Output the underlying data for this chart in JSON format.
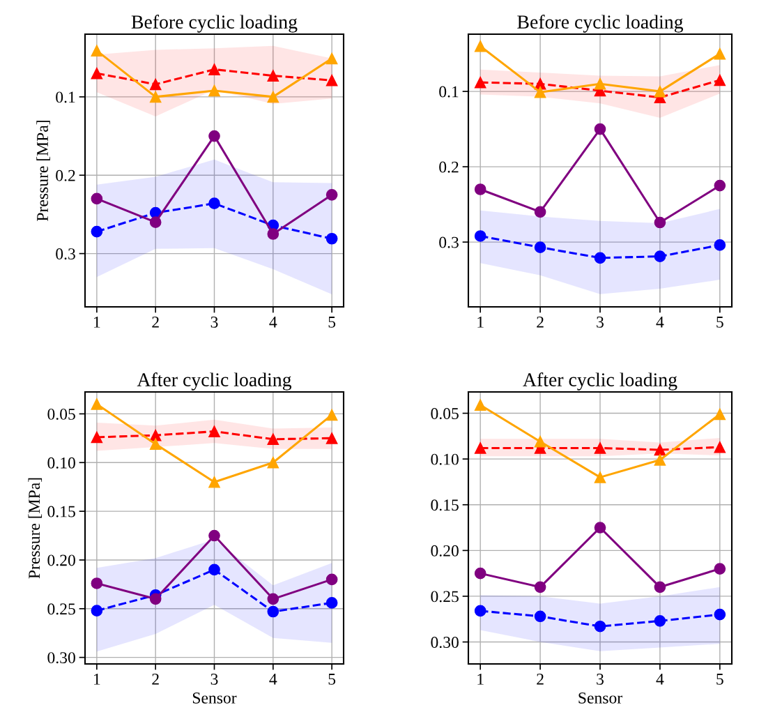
{
  "chart_data": [
    {
      "type": "line",
      "title": "Before cyclic loading",
      "ylabel": "Pressure [MPa]",
      "x": [
        1,
        2,
        3,
        4,
        5
      ],
      "xlim": [
        0.8,
        5.2
      ],
      "xticks": [
        1,
        2,
        3,
        4,
        5
      ],
      "ylim": [
        0.368,
        0.02
      ],
      "yticks": [
        0.1,
        0.2,
        0.3
      ],
      "grid": true,
      "series": [
        {
          "color": "#ff0000",
          "marker": "triangle",
          "line_style": "dashed",
          "values": [
            0.07,
            0.084,
            0.065,
            0.073,
            0.079
          ],
          "lower": [
            0.046,
            0.04,
            0.038,
            0.035,
            0.051
          ],
          "upper": [
            0.094,
            0.125,
            0.091,
            0.109,
            0.102
          ]
        },
        {
          "color": "#ffa500",
          "marker": "triangle",
          "line_style": "solid",
          "values": [
            0.041,
            0.1,
            0.092,
            0.1,
            0.051
          ]
        },
        {
          "color": "#0000ff",
          "marker": "circle",
          "line_style": "dashed",
          "values": [
            0.272,
            0.248,
            0.236,
            0.264,
            0.281
          ],
          "lower": [
            0.212,
            0.202,
            0.18,
            0.209,
            0.21
          ],
          "upper": [
            0.33,
            0.294,
            0.293,
            0.32,
            0.352
          ]
        },
        {
          "color": "#800080",
          "marker": "circle",
          "line_style": "solid",
          "values": [
            0.23,
            0.26,
            0.15,
            0.275,
            0.225
          ]
        }
      ]
    },
    {
      "type": "line",
      "title": "Before cyclic loading",
      "x": [
        1,
        2,
        3,
        4,
        5
      ],
      "xlim": [
        0.8,
        5.2
      ],
      "xticks": [
        1,
        2,
        3,
        4,
        5
      ],
      "ylim": [
        0.386,
        0.024
      ],
      "yticks": [
        0.1,
        0.2,
        0.3
      ],
      "grid": true,
      "series": [
        {
          "color": "#ff0000",
          "marker": "triangle",
          "line_style": "dashed",
          "values": [
            0.088,
            0.09,
            0.099,
            0.108,
            0.085
          ],
          "lower": [
            0.071,
            0.075,
            0.079,
            0.08,
            0.065
          ],
          "upper": [
            0.104,
            0.107,
            0.116,
            0.135,
            0.103
          ]
        },
        {
          "color": "#ffa500",
          "marker": "triangle",
          "line_style": "solid",
          "values": [
            0.04,
            0.101,
            0.09,
            0.1,
            0.05
          ]
        },
        {
          "color": "#0000ff",
          "marker": "circle",
          "line_style": "dashed",
          "values": [
            0.292,
            0.307,
            0.321,
            0.319,
            0.304
          ],
          "lower": [
            0.258,
            0.266,
            0.272,
            0.275,
            0.256
          ],
          "upper": [
            0.328,
            0.344,
            0.369,
            0.362,
            0.35
          ]
        },
        {
          "color": "#800080",
          "marker": "circle",
          "line_style": "solid",
          "values": [
            0.23,
            0.26,
            0.15,
            0.274,
            0.225
          ]
        }
      ]
    },
    {
      "type": "line",
      "title": "After cyclic loading",
      "xlabel": "Sensor",
      "ylabel": "Pressure [MPa]",
      "x": [
        1,
        2,
        3,
        4,
        5
      ],
      "xlim": [
        0.8,
        5.2
      ],
      "xticks": [
        1,
        2,
        3,
        4,
        5
      ],
      "ylim": [
        0.3067,
        0.0275
      ],
      "yticks": [
        {
          "value": 0.05,
          "label": "0.05"
        },
        {
          "value": 0.1,
          "label": "0.10"
        },
        {
          "value": 0.15,
          "label": "0.15"
        },
        {
          "value": 0.2,
          "label": "0.20"
        },
        {
          "value": 0.25,
          "label": "0.25"
        },
        {
          "value": 0.3,
          "label": "0.30"
        }
      ],
      "grid": true,
      "series": [
        {
          "color": "#ff0000",
          "marker": "triangle",
          "line_style": "dashed",
          "values": [
            0.074,
            0.072,
            0.068,
            0.076,
            0.075
          ],
          "lower": [
            0.059,
            0.062,
            0.056,
            0.065,
            0.064
          ],
          "upper": [
            0.088,
            0.084,
            0.08,
            0.086,
            0.086
          ]
        },
        {
          "color": "#ffa500",
          "marker": "triangle",
          "line_style": "solid",
          "values": [
            0.04,
            0.081,
            0.12,
            0.1,
            0.051
          ]
        },
        {
          "color": "#0000ff",
          "marker": "circle",
          "line_style": "dashed",
          "values": [
            0.252,
            0.236,
            0.21,
            0.253,
            0.244
          ],
          "lower": [
            0.208,
            0.198,
            0.179,
            0.226,
            0.203
          ],
          "upper": [
            0.294,
            0.276,
            0.246,
            0.28,
            0.285
          ]
        },
        {
          "color": "#800080",
          "marker": "circle",
          "line_style": "solid",
          "values": [
            0.224,
            0.24,
            0.175,
            0.24,
            0.22
          ]
        }
      ]
    },
    {
      "type": "line",
      "title": "After cyclic loading",
      "xlabel": "Sensor",
      "x": [
        1,
        2,
        3,
        4,
        5
      ],
      "xlim": [
        0.8,
        5.2
      ],
      "xticks": [
        1,
        2,
        3,
        4,
        5
      ],
      "ylim": [
        0.324,
        0.0267
      ],
      "yticks": [
        {
          "value": 0.05,
          "label": "0.05"
        },
        {
          "value": 0.1,
          "label": "0.10"
        },
        {
          "value": 0.15,
          "label": "0.15"
        },
        {
          "value": 0.2,
          "label": "0.20"
        },
        {
          "value": 0.25,
          "label": "0.25"
        },
        {
          "value": 0.3,
          "label": "0.30"
        }
      ],
      "grid": true,
      "series": [
        {
          "color": "#ff0000",
          "marker": "triangle",
          "line_style": "dashed",
          "values": [
            0.088,
            0.088,
            0.088,
            0.09,
            0.087
          ],
          "lower": [
            0.078,
            0.078,
            0.078,
            0.082,
            0.077
          ],
          "upper": [
            0.097,
            0.097,
            0.097,
            0.094,
            0.096
          ]
        },
        {
          "color": "#ffa500",
          "marker": "triangle",
          "line_style": "solid",
          "values": [
            0.041,
            0.081,
            0.12,
            0.101,
            0.051
          ]
        },
        {
          "color": "#0000ff",
          "marker": "circle",
          "line_style": "dashed",
          "values": [
            0.266,
            0.272,
            0.283,
            0.277,
            0.27
          ],
          "lower": [
            0.249,
            0.25,
            0.258,
            0.25,
            0.24
          ],
          "upper": [
            0.287,
            0.3,
            0.31,
            0.306,
            0.302
          ]
        },
        {
          "color": "#800080",
          "marker": "circle",
          "line_style": "solid",
          "values": [
            0.225,
            0.24,
            0.175,
            0.24,
            0.22
          ]
        }
      ]
    }
  ]
}
